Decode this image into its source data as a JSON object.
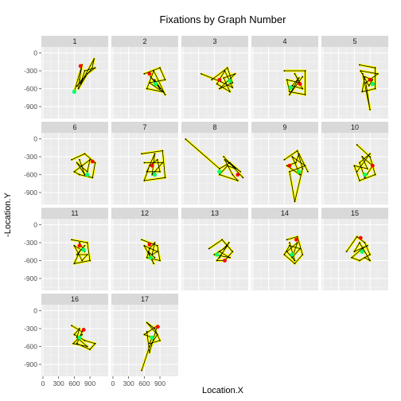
{
  "chart_data": {
    "type": "scatter",
    "title": "Fixations by Graph Number",
    "xlabel": "Location.X",
    "ylabel": "-Location.Y",
    "xlim": [
      -30,
      1250
    ],
    "ylim": [
      -1100,
      100
    ],
    "x_ticks": [
      0,
      300,
      600,
      900
    ],
    "x_tick_labels": [
      "0",
      "300",
      "600",
      "900"
    ],
    "y_ticks": [
      0,
      -300,
      -600,
      -900
    ],
    "y_tick_labels": [
      "0",
      "-300",
      "-600",
      "-900"
    ],
    "facet_variable": "Graph Number",
    "grid": true,
    "colors": {
      "panel_bg": "#ebebeb",
      "grid_major": "#ffffff",
      "grid_minor": "#f5f5f5",
      "strip_bg": "#d9d9d9",
      "path": "#000000",
      "halo": "#ffff00",
      "start_marker": "#00ff66",
      "end_marker": "#ff0000"
    },
    "panels": [
      {
        "label": "1",
        "points": [
          [
            760,
            -430
          ],
          [
            650,
            -560
          ],
          [
            940,
            -260
          ],
          [
            980,
            -100
          ],
          [
            720,
            -520
          ],
          [
            800,
            -300
          ],
          [
            1000,
            -250
          ],
          [
            850,
            -350
          ],
          [
            680,
            -600
          ],
          [
            700,
            -450
          ],
          [
            750,
            -200
          ],
          [
            600,
            -650
          ]
        ],
        "start": [
          600,
          -650
        ],
        "end": [
          720,
          -220
        ]
      },
      {
        "label": "2",
        "points": [
          [
            600,
            -350
          ],
          [
            900,
            -250
          ],
          [
            1000,
            -450
          ],
          [
            700,
            -500
          ],
          [
            950,
            -650
          ],
          [
            650,
            -600
          ],
          [
            780,
            -300
          ],
          [
            1000,
            -700
          ],
          [
            850,
            -520
          ],
          [
            720,
            -400
          ],
          [
            900,
            -600
          ],
          [
            800,
            -450
          ]
        ],
        "start": [
          820,
          -520
        ],
        "end": [
          700,
          -350
        ]
      },
      {
        "label": "3",
        "points": [
          [
            550,
            -450
          ],
          [
            850,
            -250
          ],
          [
            950,
            -500
          ],
          [
            700,
            -600
          ],
          [
            1000,
            -350
          ],
          [
            780,
            -420
          ],
          [
            900,
            -650
          ],
          [
            650,
            -520
          ],
          [
            800,
            -300
          ],
          [
            950,
            -580
          ],
          [
            720,
            -480
          ],
          [
            350,
            -350
          ]
        ],
        "start": [
          900,
          -470
        ],
        "end": [
          700,
          -450
        ]
      },
      {
        "label": "4",
        "points": [
          [
            600,
            -300
          ],
          [
            1000,
            -300
          ],
          [
            1000,
            -700
          ],
          [
            700,
            -650
          ],
          [
            650,
            -450
          ],
          [
            900,
            -500
          ],
          [
            800,
            -350
          ],
          [
            950,
            -600
          ],
          [
            750,
            -550
          ],
          [
            880,
            -420
          ],
          [
            700,
            -700
          ],
          [
            950,
            -400
          ]
        ],
        "start": [
          720,
          -580
        ],
        "end": [
          900,
          -520
        ]
      },
      {
        "label": "5",
        "points": [
          [
            700,
            -200
          ],
          [
            1000,
            -250
          ],
          [
            1000,
            -600
          ],
          [
            750,
            -650
          ],
          [
            800,
            -400
          ],
          [
            950,
            -450
          ],
          [
            880,
            -550
          ],
          [
            720,
            -300
          ],
          [
            1050,
            -350
          ],
          [
            820,
            -500
          ],
          [
            900,
            -950
          ],
          [
            760,
            -350
          ]
        ],
        "start": [
          950,
          -520
        ],
        "end": [
          900,
          -450
        ]
      },
      {
        "label": "6",
        "points": [
          [
            550,
            -350
          ],
          [
            800,
            -250
          ],
          [
            1000,
            -400
          ],
          [
            950,
            -650
          ],
          [
            700,
            -600
          ],
          [
            600,
            -550
          ],
          [
            750,
            -450
          ],
          [
            900,
            -350
          ],
          [
            850,
            -550
          ],
          [
            650,
            -400
          ],
          [
            800,
            -600
          ],
          [
            700,
            -350
          ]
        ],
        "start": [
          850,
          -600
        ],
        "end": [
          950,
          -380
        ]
      },
      {
        "label": "7",
        "points": [
          [
            550,
            -250
          ],
          [
            950,
            -200
          ],
          [
            1000,
            -650
          ],
          [
            600,
            -700
          ],
          [
            700,
            -450
          ],
          [
            850,
            -350
          ],
          [
            900,
            -550
          ],
          [
            650,
            -550
          ],
          [
            800,
            -250
          ],
          [
            750,
            -600
          ],
          [
            950,
            -400
          ],
          [
            600,
            -400
          ]
        ],
        "start": [
          800,
          -600
        ],
        "end": [
          750,
          -450
        ]
      },
      {
        "label": "8",
        "points": [
          [
            50,
            -5
          ],
          [
            700,
            -500
          ],
          [
            900,
            -400
          ],
          [
            1100,
            -550
          ],
          [
            800,
            -350
          ],
          [
            950,
            -600
          ],
          [
            1050,
            -700
          ],
          [
            700,
            -600
          ],
          [
            850,
            -450
          ],
          [
            1000,
            -500
          ],
          [
            780,
            -300
          ],
          [
            1150,
            -650
          ]
        ],
        "start": [
          700,
          -550
        ],
        "end": [
          1050,
          -600
        ]
      },
      {
        "label": "9",
        "points": [
          [
            600,
            -350
          ],
          [
            850,
            -200
          ],
          [
            950,
            -500
          ],
          [
            800,
            -1050
          ],
          [
            700,
            -550
          ],
          [
            1000,
            -450
          ],
          [
            750,
            -300
          ],
          [
            900,
            -600
          ],
          [
            650,
            -450
          ],
          [
            820,
            -400
          ],
          [
            880,
            -250
          ],
          [
            1050,
            -550
          ]
        ],
        "start": [
          880,
          -550
        ],
        "end": [
          700,
          -450
        ]
      },
      {
        "label": "10",
        "points": [
          [
            650,
            -100
          ],
          [
            900,
            -300
          ],
          [
            1000,
            -600
          ],
          [
            700,
            -700
          ],
          [
            600,
            -450
          ],
          [
            850,
            -500
          ],
          [
            750,
            -300
          ],
          [
            950,
            -450
          ],
          [
            800,
            -650
          ],
          [
            700,
            -400
          ],
          [
            900,
            -250
          ],
          [
            650,
            -550
          ]
        ],
        "start": [
          800,
          -600
        ],
        "end": [
          950,
          -450
        ]
      },
      {
        "label": "11",
        "points": [
          [
            550,
            -250
          ],
          [
            850,
            -300
          ],
          [
            900,
            -600
          ],
          [
            600,
            -650
          ],
          [
            700,
            -450
          ],
          [
            800,
            -350
          ],
          [
            650,
            -500
          ],
          [
            850,
            -500
          ],
          [
            750,
            -600
          ],
          [
            600,
            -350
          ],
          [
            800,
            -450
          ],
          [
            700,
            -300
          ]
        ],
        "start": [
          780,
          -420
        ],
        "end": [
          700,
          -350
        ]
      },
      {
        "label": "12",
        "points": [
          [
            550,
            -250
          ],
          [
            850,
            -350
          ],
          [
            900,
            -600
          ],
          [
            650,
            -550
          ],
          [
            700,
            -400
          ],
          [
            800,
            -300
          ],
          [
            750,
            -500
          ],
          [
            850,
            -450
          ],
          [
            600,
            -350
          ],
          [
            780,
            -650
          ],
          [
            680,
            -450
          ],
          [
            800,
            -550
          ]
        ],
        "start": [
          720,
          -550
        ],
        "end": [
          700,
          -330
        ]
      },
      {
        "label": "13",
        "points": [
          [
            500,
            -400
          ],
          [
            750,
            -250
          ],
          [
            950,
            -450
          ],
          [
            800,
            -600
          ],
          [
            650,
            -600
          ],
          [
            850,
            -350
          ],
          [
            700,
            -450
          ],
          [
            900,
            -550
          ],
          [
            600,
            -500
          ],
          [
            780,
            -400
          ],
          [
            880,
            -300
          ],
          [
            700,
            -550
          ]
        ],
        "start": [
          650,
          -500
        ],
        "end": [
          800,
          -600
        ]
      },
      {
        "label": "14",
        "points": [
          [
            650,
            -250
          ],
          [
            850,
            -200
          ],
          [
            950,
            -500
          ],
          [
            800,
            -650
          ],
          [
            600,
            -500
          ],
          [
            700,
            -350
          ],
          [
            900,
            -400
          ],
          [
            750,
            -550
          ],
          [
            850,
            -300
          ],
          [
            650,
            -450
          ],
          [
            800,
            -600
          ],
          [
            700,
            -300
          ]
        ],
        "start": [
          750,
          -500
        ],
        "end": [
          830,
          -250
        ]
      },
      {
        "label": "15",
        "points": [
          [
            450,
            -450
          ],
          [
            650,
            -200
          ],
          [
            800,
            -300
          ],
          [
            900,
            -500
          ],
          [
            700,
            -600
          ],
          [
            550,
            -550
          ],
          [
            750,
            -400
          ],
          [
            850,
            -350
          ],
          [
            600,
            -450
          ],
          [
            700,
            -300
          ],
          [
            900,
            -600
          ],
          [
            800,
            -550
          ]
        ],
        "start": [
          750,
          -450
        ],
        "end": [
          720,
          -220
        ]
      },
      {
        "label": "16",
        "points": [
          [
            550,
            -250
          ],
          [
            750,
            -350
          ],
          [
            650,
            -550
          ],
          [
            900,
            -650
          ],
          [
            1000,
            -550
          ],
          [
            800,
            -500
          ],
          [
            600,
            -400
          ],
          [
            700,
            -300
          ],
          [
            650,
            -450
          ],
          [
            850,
            -600
          ],
          [
            580,
            -550
          ],
          [
            750,
            -400
          ]
        ],
        "start": [
          700,
          -450
        ],
        "end": [
          780,
          -320
        ]
      },
      {
        "label": "17",
        "points": [
          [
            550,
            -1000
          ],
          [
            700,
            -600
          ],
          [
            850,
            -400
          ],
          [
            650,
            -200
          ],
          [
            800,
            -300
          ],
          [
            900,
            -500
          ],
          [
            700,
            -550
          ],
          [
            750,
            -450
          ],
          [
            600,
            -400
          ],
          [
            850,
            -250
          ],
          [
            700,
            -700
          ],
          [
            650,
            -350
          ]
        ],
        "start": [
          750,
          -450
        ],
        "end": [
          860,
          -270
        ]
      }
    ]
  }
}
